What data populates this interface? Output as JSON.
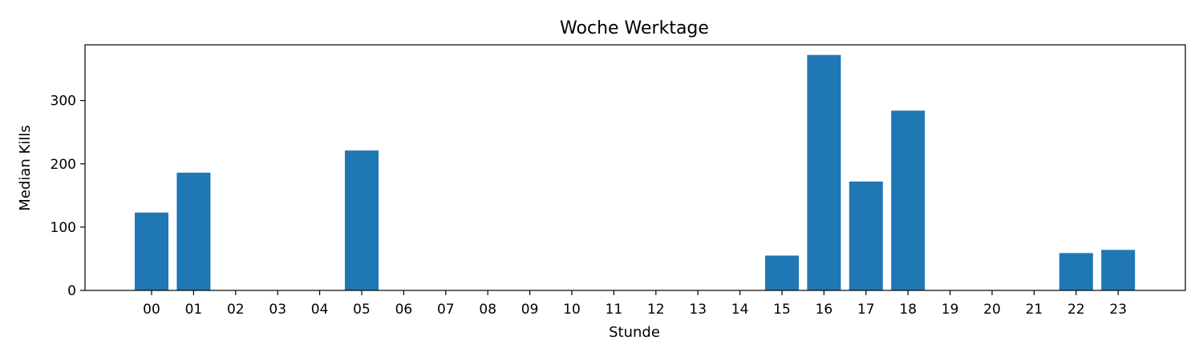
{
  "chart_data": {
    "type": "bar",
    "title": "Woche Werktage",
    "xlabel": "Stunde",
    "ylabel": "Median Kills",
    "categories": [
      "00",
      "01",
      "02",
      "03",
      "04",
      "05",
      "06",
      "07",
      "08",
      "09",
      "10",
      "11",
      "12",
      "13",
      "14",
      "15",
      "16",
      "17",
      "18",
      "19",
      "20",
      "21",
      "22",
      "23"
    ],
    "values": [
      123,
      186,
      0,
      0,
      0,
      221,
      0,
      0,
      0,
      0,
      0,
      0,
      0,
      0,
      0,
      55,
      372,
      172,
      284,
      0,
      0,
      0,
      59,
      64
    ],
    "ylim": [
      0,
      388
    ],
    "yticks": [
      0,
      100,
      200,
      300
    ],
    "grid": false,
    "legend": "none",
    "bar_color": "#1f77b4"
  }
}
